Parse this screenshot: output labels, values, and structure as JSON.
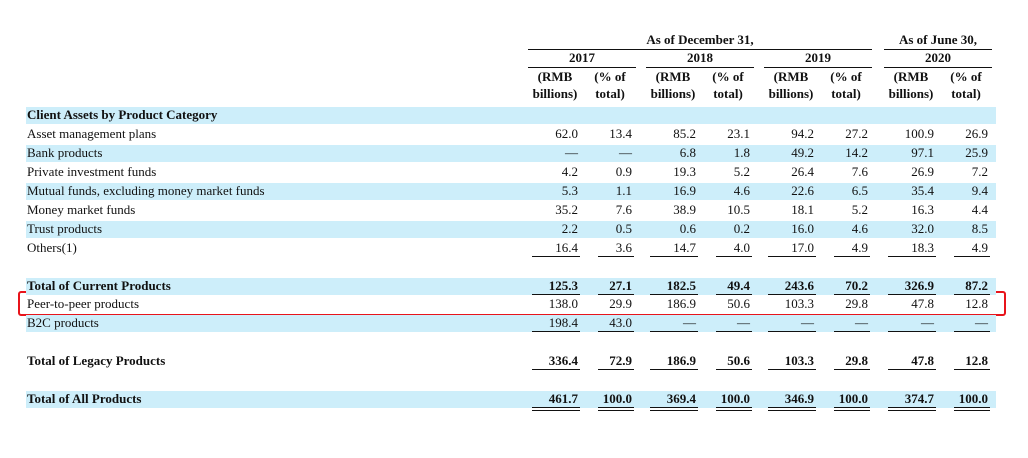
{
  "header": {
    "group_dec": "As of December 31,",
    "group_jun": "As of June 30,",
    "years": [
      "2017",
      "2018",
      "2019",
      "2020"
    ],
    "col_rmb_1": "(RMB",
    "col_rmb_2": "billions)",
    "col_pct_1": "(% of",
    "col_pct_2": "total)"
  },
  "section_title": "Client Assets by Product Category",
  "current_rows": [
    {
      "label": "Asset management plans",
      "values": [
        "62.0",
        "13.4",
        "85.2",
        "23.1",
        "94.2",
        "27.2",
        "100.9",
        "26.9"
      ]
    },
    {
      "label": "Bank products",
      "values": [
        "—",
        "—",
        "6.8",
        "1.8",
        "49.2",
        "14.2",
        "97.1",
        "25.9"
      ]
    },
    {
      "label": "Private investment funds",
      "values": [
        "4.2",
        "0.9",
        "19.3",
        "5.2",
        "26.4",
        "7.6",
        "26.9",
        "7.2"
      ]
    },
    {
      "label": "Mutual funds, excluding money market funds",
      "values": [
        "5.3",
        "1.1",
        "16.9",
        "4.6",
        "22.6",
        "6.5",
        "35.4",
        "9.4"
      ]
    },
    {
      "label": "Money market funds",
      "values": [
        "35.2",
        "7.6",
        "38.9",
        "10.5",
        "18.1",
        "5.2",
        "16.3",
        "4.4"
      ]
    },
    {
      "label": "Trust products",
      "values": [
        "2.2",
        "0.5",
        "0.6",
        "0.2",
        "16.0",
        "4.6",
        "32.0",
        "8.5"
      ]
    },
    {
      "label": "Others(1)",
      "values": [
        "16.4",
        "3.6",
        "14.7",
        "4.0",
        "17.0",
        "4.9",
        "18.3",
        "4.9"
      ]
    }
  ],
  "total_current": {
    "label": "Total of Current Products",
    "values": [
      "125.3",
      "27.1",
      "182.5",
      "49.4",
      "243.6",
      "70.2",
      "326.9",
      "87.2"
    ]
  },
  "legacy_rows": [
    {
      "label": "Peer-to-peer products",
      "values": [
        "138.0",
        "29.9",
        "186.9",
        "50.6",
        "103.3",
        "29.8",
        "47.8",
        "12.8"
      ]
    },
    {
      "label": "B2C products",
      "values": [
        "198.4",
        "43.0",
        "—",
        "—",
        "—",
        "—",
        "—",
        "—"
      ]
    }
  ],
  "total_legacy": {
    "label": "Total of Legacy Products",
    "values": [
      "336.4",
      "72.9",
      "186.9",
      "50.6",
      "103.3",
      "29.8",
      "47.8",
      "12.8"
    ]
  },
  "total_all": {
    "label": "Total of All Products",
    "values": [
      "461.7",
      "100.0",
      "369.4",
      "100.0",
      "346.9",
      "100.0",
      "374.7",
      "100.0"
    ]
  },
  "colors": {
    "band": "#cdeefa",
    "highlight": "#e8141b"
  }
}
